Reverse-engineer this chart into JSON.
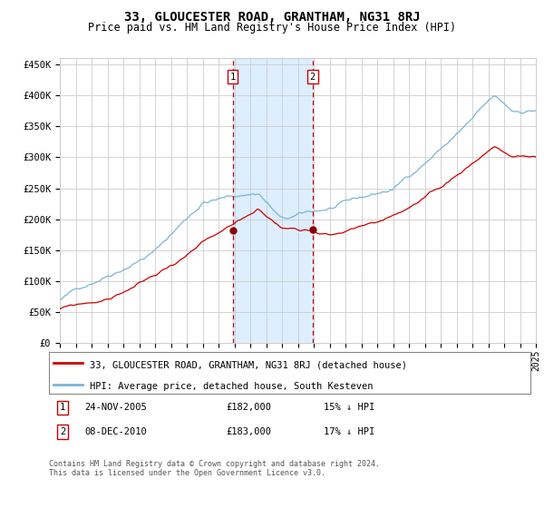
{
  "title": "33, GLOUCESTER ROAD, GRANTHAM, NG31 8RJ",
  "subtitle": "Price paid vs. HM Land Registry's House Price Index (HPI)",
  "hpi_label": "HPI: Average price, detached house, South Kesteven",
  "property_label": "33, GLOUCESTER ROAD, GRANTHAM, NG31 8RJ (detached house)",
  "ylim": [
    0,
    460000
  ],
  "yticks": [
    0,
    50000,
    100000,
    150000,
    200000,
    250000,
    300000,
    350000,
    400000,
    450000
  ],
  "ytick_labels": [
    "£0",
    "£50K",
    "£100K",
    "£150K",
    "£200K",
    "£250K",
    "£300K",
    "£350K",
    "£400K",
    "£450K"
  ],
  "x_start_year": 1995,
  "x_end_year": 2025,
  "sale1_date": "24-NOV-2005",
  "sale1_price": 182000,
  "sale1_pct": "15%",
  "sale1_year": 2005.9,
  "sale2_date": "08-DEC-2010",
  "sale2_price": 183000,
  "sale2_pct": "17%",
  "sale2_year": 2010.93,
  "hpi_color": "#7ab4d8",
  "property_color": "#cc0000",
  "marker_color": "#8b0000",
  "shade_color": "#ddeeff",
  "dashed_color": "#cc0000",
  "grid_color": "#cccccc",
  "bg_color": "#ffffff",
  "footnote": "Contains HM Land Registry data © Crown copyright and database right 2024.\nThis data is licensed under the Open Government Licence v3.0.",
  "box_color": "#cc0000"
}
